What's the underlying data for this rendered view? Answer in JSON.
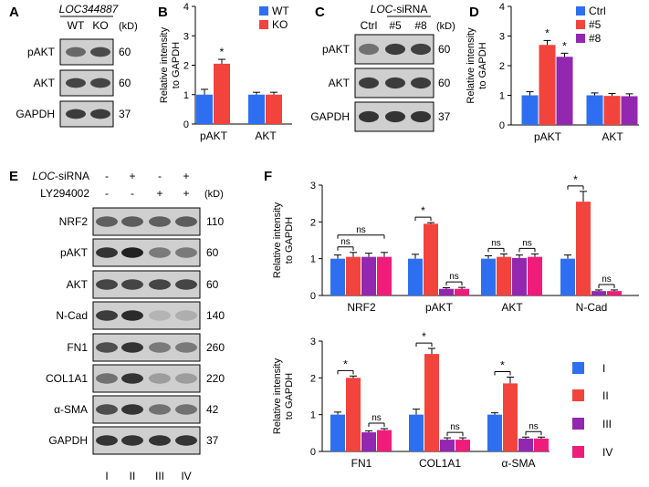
{
  "colors": {
    "blue": "#2e6ff2",
    "red": "#f2433c",
    "purple": "#9327b0",
    "pink": "#f01c7a",
    "axis": "#000000"
  },
  "panels": {
    "A": {
      "letter": "A",
      "gene": "LOC344887",
      "lanes": [
        "WT",
        "KO"
      ],
      "kd": "(kD)",
      "rows": [
        {
          "label": "pAKT",
          "mw": "60",
          "intensity": [
            0.55,
            0.72
          ]
        },
        {
          "label": "AKT",
          "mw": "60",
          "intensity": [
            0.75,
            0.75
          ]
        },
        {
          "label": "GAPDH",
          "mw": "37",
          "intensity": [
            0.8,
            0.8
          ]
        }
      ]
    },
    "C": {
      "letter": "C",
      "gene": "LOC",
      "gene_suffix": "-siRNA",
      "lanes": [
        "Ctrl",
        "#5",
        "#8"
      ],
      "kd": "(kD)",
      "rows": [
        {
          "label": "pAKT",
          "mw": "60",
          "intensity": [
            0.5,
            0.8,
            0.78
          ]
        },
        {
          "label": "AKT",
          "mw": "60",
          "intensity": [
            0.8,
            0.8,
            0.8
          ]
        },
        {
          "label": "GAPDH",
          "mw": "37",
          "intensity": [
            0.85,
            0.85,
            0.85
          ]
        }
      ]
    },
    "E": {
      "letter": "E",
      "treatments": [
        {
          "name": "LOC",
          "suffix": "-siRNA",
          "italic_name": true,
          "signs": [
            "-",
            "+",
            "-",
            "+"
          ]
        },
        {
          "name": "LY294002",
          "suffix": "",
          "italic_name": false,
          "signs": [
            "-",
            "-",
            "+",
            "+"
          ]
        }
      ],
      "kd": "(kD)",
      "lanes": [
        "I",
        "II",
        "III",
        "IV"
      ],
      "rows": [
        {
          "label": "NRF2",
          "mw": "110",
          "intensity": [
            0.6,
            0.62,
            0.6,
            0.62
          ]
        },
        {
          "label": "pAKT",
          "mw": "60",
          "intensity": [
            0.85,
            0.95,
            0.45,
            0.45
          ]
        },
        {
          "label": "AKT",
          "mw": "60",
          "intensity": [
            0.75,
            0.75,
            0.75,
            0.75
          ]
        },
        {
          "label": "N-Cad",
          "mw": "140",
          "intensity": [
            0.8,
            0.9,
            0.12,
            0.15
          ]
        },
        {
          "label": "FN1",
          "mw": "260",
          "intensity": [
            0.7,
            0.85,
            0.45,
            0.45
          ]
        },
        {
          "label": "COL1A1",
          "mw": "220",
          "intensity": [
            0.5,
            0.85,
            0.25,
            0.25
          ]
        },
        {
          "label": "α-SMA",
          "mw": "42",
          "intensity": [
            0.7,
            0.85,
            0.5,
            0.5
          ]
        },
        {
          "label": "GAPDH",
          "mw": "37",
          "intensity": [
            0.85,
            0.85,
            0.85,
            0.85
          ]
        }
      ]
    },
    "F": {
      "letter": "F",
      "legend": [
        {
          "label": "I",
          "color": "#2e6ff2"
        },
        {
          "label": "II",
          "color": "#f2433c"
        },
        {
          "label": "III",
          "color": "#9327b0"
        },
        {
          "label": "IV",
          "color": "#f01c7a"
        }
      ]
    }
  },
  "chart_data": [
    {
      "panel": "B",
      "letter": "B",
      "type": "bar",
      "ylabel": [
        "Relative intensity",
        "to GAPDH"
      ],
      "ylim": [
        0,
        4
      ],
      "yticks": [
        0,
        1,
        2,
        3,
        4
      ],
      "categories": [
        "pAKT",
        "AKT"
      ],
      "series": [
        {
          "name": "WT",
          "color": "#2e6ff2",
          "values": [
            1.0,
            1.0
          ],
          "errors": [
            0.18,
            0.08
          ]
        },
        {
          "name": "KO",
          "color": "#f2433c",
          "values": [
            2.05,
            1.0
          ],
          "errors": [
            0.15,
            0.08
          ]
        }
      ],
      "legend": "top-right",
      "annotations": [
        {
          "category": 0,
          "series": 1,
          "text": "*"
        }
      ]
    },
    {
      "panel": "D",
      "letter": "D",
      "type": "bar",
      "ylabel": [
        "Relative intensity",
        "to GAPDH"
      ],
      "ylim": [
        0,
        4
      ],
      "yticks": [
        0,
        1,
        2,
        3,
        4
      ],
      "categories": [
        "pAKT",
        "AKT"
      ],
      "series": [
        {
          "name": "Ctrl",
          "color": "#2e6ff2",
          "values": [
            1.0,
            1.0
          ],
          "errors": [
            0.12,
            0.08
          ]
        },
        {
          "name": "#5",
          "color": "#f2433c",
          "values": [
            2.7,
            0.98
          ],
          "errors": [
            0.15,
            0.08
          ]
        },
        {
          "name": "#8",
          "color": "#9327b0",
          "values": [
            2.3,
            0.97
          ],
          "errors": [
            0.12,
            0.08
          ]
        }
      ],
      "legend": "top-right",
      "annotations": [
        {
          "category": 0,
          "series": 1,
          "text": "*"
        },
        {
          "category": 0,
          "series": 2,
          "text": "*"
        }
      ]
    },
    {
      "panel": "F-top",
      "type": "bar",
      "ylabel": [
        "Relative intensity",
        "to GAPDH"
      ],
      "ylim": [
        0,
        3
      ],
      "yticks": [
        0,
        1,
        2,
        3
      ],
      "categories": [
        "NRF2",
        "pAKT",
        "AKT",
        "N-Cad"
      ],
      "series": [
        {
          "name": "I",
          "color": "#2e6ff2",
          "values": [
            1.0,
            1.0,
            1.0,
            1.0
          ],
          "errors": [
            0.1,
            0.12,
            0.08,
            0.1
          ]
        },
        {
          "name": "II",
          "color": "#f2433c",
          "values": [
            1.05,
            1.95,
            1.05,
            2.55
          ],
          "errors": [
            0.12,
            0.03,
            0.08,
            0.28
          ]
        },
        {
          "name": "III",
          "color": "#9327b0",
          "values": [
            1.05,
            0.18,
            1.02,
            0.12
          ],
          "errors": [
            0.1,
            0.03,
            0.08,
            0.03
          ]
        },
        {
          "name": "IV",
          "color": "#f01c7a",
          "values": [
            1.05,
            0.18,
            1.05,
            0.12
          ],
          "errors": [
            0.12,
            0.04,
            0.08,
            0.03
          ]
        }
      ],
      "annotations": [
        {
          "category": 0,
          "from": 0,
          "to": 1,
          "text": "ns",
          "level": 0
        },
        {
          "category": 0,
          "from": 0,
          "to": 3,
          "text": "ns",
          "level": 1
        },
        {
          "category": 1,
          "from": 0,
          "to": 1,
          "text": "*",
          "level": 0
        },
        {
          "category": 1,
          "from": 2,
          "to": 3,
          "text": "ns",
          "level": 0
        },
        {
          "category": 2,
          "from": 0,
          "to": 1,
          "text": "ns",
          "level": 0
        },
        {
          "category": 2,
          "from": 2,
          "to": 3,
          "text": "ns",
          "level": 0
        },
        {
          "category": 3,
          "from": 0,
          "to": 1,
          "text": "*",
          "level": 0
        },
        {
          "category": 3,
          "from": 2,
          "to": 3,
          "text": "ns",
          "level": 0
        }
      ]
    },
    {
      "panel": "F-bottom",
      "type": "bar",
      "ylabel": [
        "Relative intensity",
        "to GAPDH"
      ],
      "ylim": [
        0,
        3
      ],
      "yticks": [
        0,
        1,
        2,
        3
      ],
      "categories": [
        "FN1",
        "COL1A1",
        "α-SMA"
      ],
      "series": [
        {
          "name": "I",
          "color": "#2e6ff2",
          "values": [
            1.0,
            1.0,
            1.0
          ],
          "errors": [
            0.07,
            0.15,
            0.05
          ]
        },
        {
          "name": "II",
          "color": "#f2433c",
          "values": [
            2.0,
            2.65,
            1.85
          ],
          "errors": [
            0.05,
            0.15,
            0.17
          ]
        },
        {
          "name": "III",
          "color": "#9327b0",
          "values": [
            0.52,
            0.32,
            0.35
          ],
          "errors": [
            0.04,
            0.05,
            0.04
          ]
        },
        {
          "name": "IV",
          "color": "#f01c7a",
          "values": [
            0.58,
            0.32,
            0.35
          ],
          "errors": [
            0.04,
            0.05,
            0.04
          ]
        }
      ],
      "annotations": [
        {
          "category": 0,
          "from": 0,
          "to": 1,
          "text": "*",
          "level": 0
        },
        {
          "category": 0,
          "from": 2,
          "to": 3,
          "text": "ns",
          "level": 0
        },
        {
          "category": 1,
          "from": 0,
          "to": 1,
          "text": "*",
          "level": 0
        },
        {
          "category": 1,
          "from": 2,
          "to": 3,
          "text": "ns",
          "level": 0
        },
        {
          "category": 2,
          "from": 0,
          "to": 1,
          "text": "*",
          "level": 0
        },
        {
          "category": 2,
          "from": 2,
          "to": 3,
          "text": "ns",
          "level": 0
        }
      ]
    }
  ]
}
